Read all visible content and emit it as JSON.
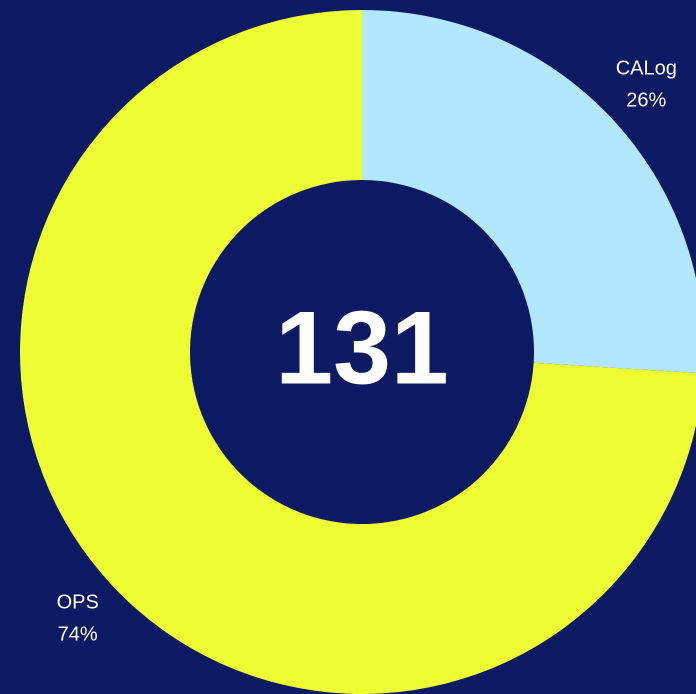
{
  "chart_data": {
    "type": "pie",
    "donut": true,
    "center_label": "131",
    "categories": [
      "CALog",
      "OPS"
    ],
    "values": [
      26,
      74
    ],
    "value_labels": [
      "26%",
      "74%"
    ],
    "colors": [
      "#b3e6ff",
      "#edfc33"
    ]
  }
}
